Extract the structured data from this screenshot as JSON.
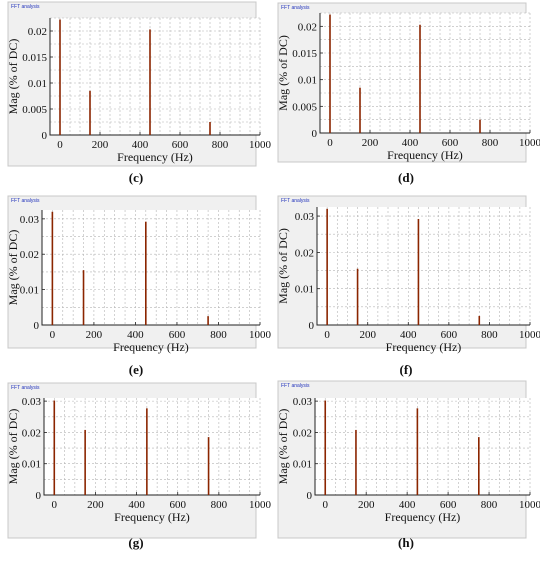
{
  "colors": {
    "bar": "#8b2500",
    "background": "#f0f0f0",
    "plot": "#ffffff",
    "grid": "#b4b4b4"
  },
  "chart_data": [
    {
      "id": "c",
      "type": "bar",
      "title": "FFT analysis",
      "caption": "(c)",
      "xlabel": "Frequency (Hz)",
      "ylabel": "Mag (% of DC)",
      "xlim": [
        -50,
        1000
      ],
      "ylim": [
        0,
        0.0225
      ],
      "xticks": [
        "0",
        "200",
        "400",
        "600",
        "800",
        "1000"
      ],
      "yticks": [
        "0",
        "0.005",
        "0.01",
        "0.015",
        "0.02"
      ],
      "ytick_values": [
        0,
        0.005,
        0.01,
        0.015,
        0.02
      ],
      "x": [
        0,
        150,
        450,
        750
      ],
      "values": [
        0.0222,
        0.0085,
        0.0203,
        0.0025
      ]
    },
    {
      "id": "d",
      "type": "bar",
      "title": "FFT analysis",
      "caption": "(d)",
      "xlabel": "Frequency (Hz)",
      "ylabel": "Mag (% of DC)",
      "xlim": [
        -50,
        1000
      ],
      "ylim": [
        0,
        0.0225
      ],
      "xticks": [
        "0",
        "200",
        "400",
        "600",
        "800",
        "1000"
      ],
      "yticks": [
        "0",
        "0.005",
        "0.01",
        "0.015",
        "0.02"
      ],
      "ytick_values": [
        0,
        0.005,
        0.01,
        0.015,
        0.02
      ],
      "x": [
        0,
        150,
        450,
        750
      ],
      "values": [
        0.0222,
        0.0085,
        0.0203,
        0.0025
      ]
    },
    {
      "id": "e",
      "type": "bar",
      "title": "FFT analysis",
      "caption": "(e)",
      "xlabel": "Frequency (Hz)",
      "ylabel": "Mag (% of DC)",
      "xlim": [
        -50,
        1000
      ],
      "ylim": [
        0,
        0.0325
      ],
      "xticks": [
        "0",
        "200",
        "400",
        "600",
        "800",
        "1000"
      ],
      "yticks": [
        "0",
        "0.01",
        "0.02",
        "0.03"
      ],
      "ytick_values": [
        0,
        0.01,
        0.02,
        0.03
      ],
      "x": [
        0,
        150,
        450,
        750
      ],
      "values": [
        0.032,
        0.0155,
        0.0292,
        0.0025
      ]
    },
    {
      "id": "f",
      "type": "bar",
      "title": "FFT analysis",
      "caption": "(f)",
      "xlabel": "Frequency (Hz)",
      "ylabel": "Mag (% of DC)",
      "xlim": [
        -50,
        1000
      ],
      "ylim": [
        0,
        0.0325
      ],
      "xticks": [
        "0",
        "200",
        "400",
        "600",
        "800",
        "1000"
      ],
      "yticks": [
        "0",
        "0.01",
        "0.02",
        "0.03"
      ],
      "ytick_values": [
        0,
        0.01,
        0.02,
        0.03
      ],
      "x": [
        0,
        150,
        450,
        750
      ],
      "values": [
        0.032,
        0.0155,
        0.0292,
        0.0025
      ]
    },
    {
      "id": "g",
      "type": "bar",
      "title": "FFT analysis",
      "caption": "(g)",
      "xlabel": "Frequency (Hz)",
      "ylabel": "Mag (% of DC)",
      "xlim": [
        -50,
        1000
      ],
      "ylim": [
        0,
        0.031
      ],
      "xticks": [
        "0",
        "200",
        "400",
        "600",
        "800",
        "1000"
      ],
      "yticks": [
        "0",
        "0.01",
        "0.02",
        "0.03"
      ],
      "ytick_values": [
        0,
        0.01,
        0.02,
        0.03
      ],
      "x": [
        0,
        150,
        450,
        750
      ],
      "values": [
        0.0302,
        0.0208,
        0.0277,
        0.0185
      ]
    },
    {
      "id": "h",
      "type": "bar",
      "title": "FFT analysis",
      "caption": "(h)",
      "xlabel": "Frequency (Hz)",
      "ylabel": "Mag (% of DC)",
      "xlim": [
        -50,
        1000
      ],
      "ylim": [
        0,
        0.031
      ],
      "xticks": [
        "0",
        "200",
        "400",
        "600",
        "800",
        "1000"
      ],
      "yticks": [
        "0",
        "0.01",
        "0.02",
        "0.03"
      ],
      "ytick_values": [
        0,
        0.01,
        0.02,
        0.03
      ],
      "x": [
        0,
        150,
        450,
        750
      ],
      "values": [
        0.0302,
        0.0208,
        0.0277,
        0.0185
      ]
    }
  ]
}
